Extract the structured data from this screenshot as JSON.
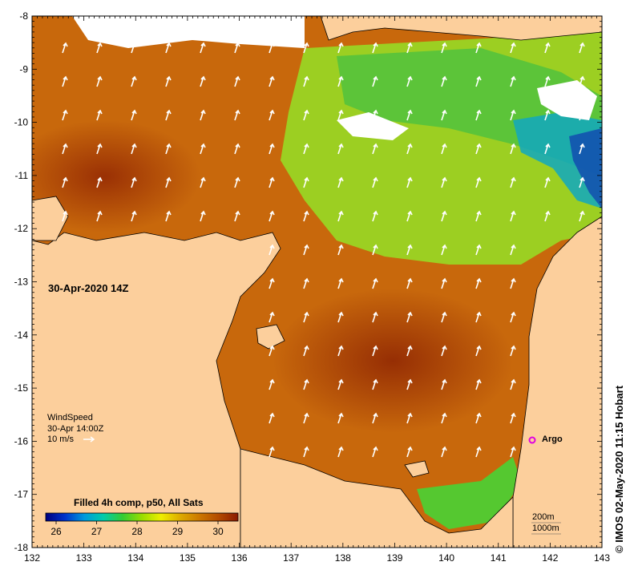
{
  "date_label": "30-Apr-2020 14Z",
  "wind_legend": {
    "title": "WindSpeed",
    "time": "30-Apr 14:00Z",
    "scale": "10 m/s"
  },
  "colorbar": {
    "title": "Filled 4h comp, p50, All Sats",
    "ticks": [
      "26",
      "27",
      "28",
      "29",
      "30"
    ],
    "colors": [
      "#00007f",
      "#0033cc",
      "#0099dd",
      "#00ccaa",
      "#33cc33",
      "#99dd00",
      "#eeee00",
      "#ddaa00",
      "#cc7700",
      "#b34a00",
      "#8b1a00"
    ]
  },
  "argo_label": "Argo",
  "depth_legend": [
    "200m",
    "1000m"
  ],
  "credit": "IMOS 02-May-2020 11:15 Hobart",
  "credit_symbol": "©",
  "axes": {
    "x_ticks": [
      "132",
      "133",
      "134",
      "135",
      "136",
      "137",
      "138",
      "139",
      "140",
      "141",
      "142",
      "143"
    ],
    "y_ticks": [
      "-8",
      "-9",
      "-10",
      "-11",
      "-12",
      "-13",
      "-14",
      "-15",
      "-16",
      "-17",
      "-18"
    ]
  },
  "colors": {
    "land": "#fccf9c",
    "warm_sst": "#c8640a",
    "hot_sst": "#a33a05",
    "cool_sst": "#7ccf2c",
    "argo": "#e000e0"
  }
}
